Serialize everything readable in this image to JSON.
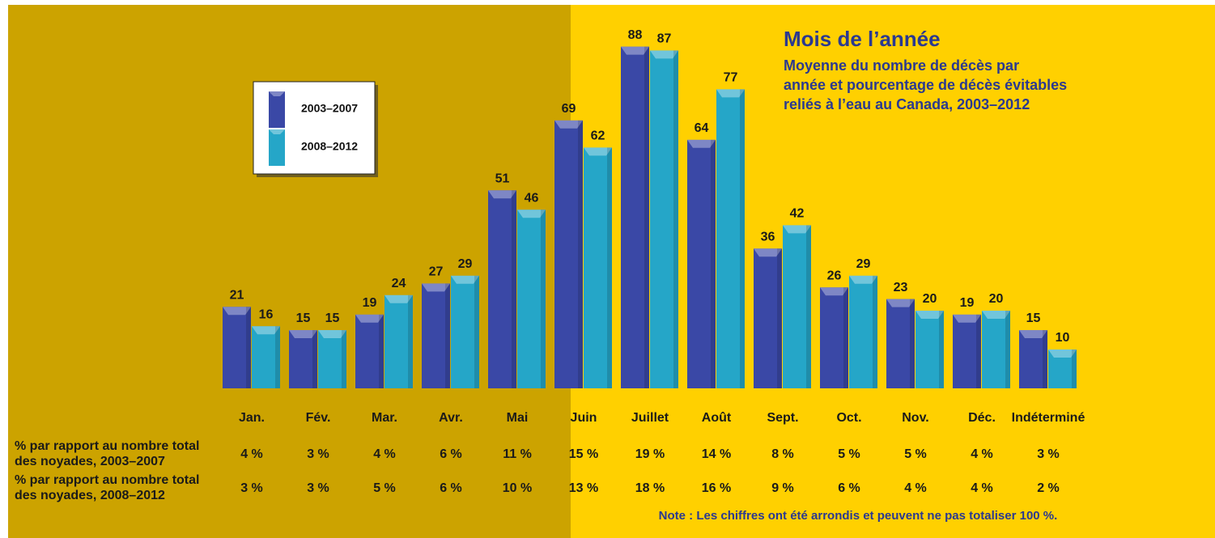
{
  "chart_data": {
    "type": "bar",
    "title": "Mois de l’année",
    "subtitle": [
      "Moyenne du nombre de décès par",
      "année et pourcentage de décès évitables",
      "reliés à l’eau au Canada, 2003–2012"
    ],
    "categories": [
      "Jan.",
      "Fév.",
      "Mar.",
      "Avr.",
      "Mai",
      "Juin",
      "Juillet",
      "Août",
      "Sept.",
      "Oct.",
      "Nov.",
      "Déc.",
      "Indéterminé"
    ],
    "series": [
      {
        "name": "2003–2007",
        "color": "#3a48a6",
        "values": [
          21,
          15,
          19,
          27,
          51,
          69,
          88,
          64,
          36,
          26,
          23,
          19,
          15
        ]
      },
      {
        "name": "2008–2012",
        "color": "#25a6c8",
        "values": [
          16,
          15,
          24,
          29,
          46,
          62,
          87,
          77,
          42,
          29,
          20,
          20,
          10
        ]
      }
    ],
    "note": "Note : Les chiffres ont été arrondis et peuvent ne pas totaliser 100 %."
  },
  "percent_table": {
    "rows": [
      {
        "label": [
          "% par rapport au nombre total",
          "des noyades, 2003–2007"
        ],
        "cells": [
          "4 %",
          "3 %",
          "4 %",
          "6 %",
          "11 %",
          "15 %",
          "19 %",
          "14 %",
          "8 %",
          "5 %",
          "5 %",
          "4 %",
          "3 %"
        ]
      },
      {
        "label": [
          "% par rapport au nombre total",
          "des noyades, 2008–2012"
        ],
        "cells": [
          "3 %",
          "3 %",
          "5 %",
          "6 %",
          "10 %",
          "13 %",
          "18 %",
          "16 %",
          "9 %",
          "6 %",
          "4 %",
          "4 %",
          "2 %"
        ]
      }
    ]
  }
}
